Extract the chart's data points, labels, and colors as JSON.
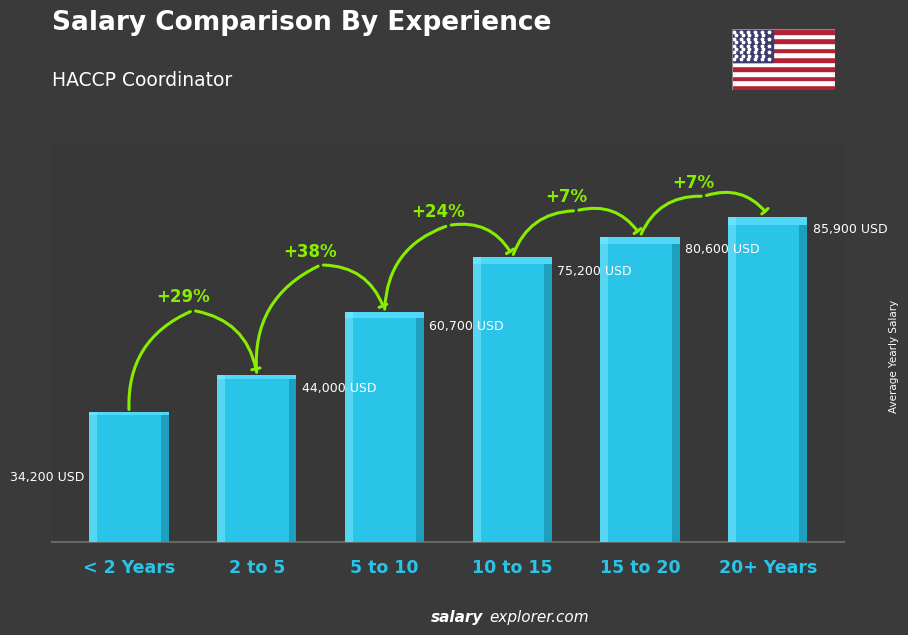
{
  "title": "Salary Comparison By Experience",
  "subtitle": "HACCP Coordinator",
  "categories": [
    "< 2 Years",
    "2 to 5",
    "5 to 10",
    "10 to 15",
    "15 to 20",
    "20+ Years"
  ],
  "values": [
    34200,
    44000,
    60700,
    75200,
    80600,
    85900
  ],
  "labels": [
    "34,200 USD",
    "44,000 USD",
    "60,700 USD",
    "75,200 USD",
    "80,600 USD",
    "85,900 USD"
  ],
  "pct_changes": [
    "+29%",
    "+38%",
    "+24%",
    "+7%",
    "+7%"
  ],
  "bar_color_main": "#29c4e8",
  "bar_color_light": "#60daf5",
  "bar_color_right": "#1890b0",
  "bar_color_top": "#50d8f8",
  "background_color": "#3a3a3a",
  "title_color": "#ffffff",
  "label_color": "#ffffff",
  "pct_color": "#88ee00",
  "xlabel_color": "#29c4e8",
  "watermark_bold": "salary",
  "watermark_normal": "explorer.com",
  "side_label": "Average Yearly Salary",
  "ylim": [
    0,
    105000
  ],
  "bar_width": 0.62,
  "flag_stripes": [
    "#B22234",
    "#ffffff",
    "#B22234",
    "#ffffff",
    "#B22234",
    "#ffffff",
    "#B22234",
    "#ffffff",
    "#B22234",
    "#ffffff",
    "#B22234",
    "#ffffff",
    "#B22234"
  ],
  "flag_canton": "#3C3B6E"
}
